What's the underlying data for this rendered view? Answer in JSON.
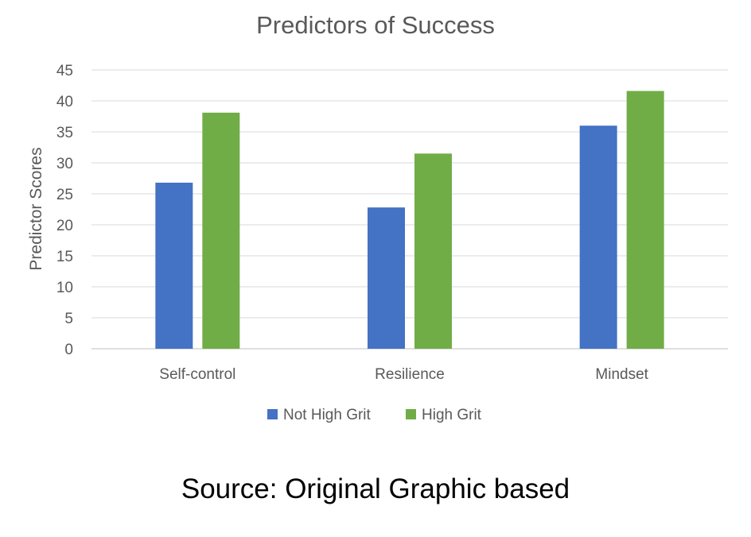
{
  "chart_data": {
    "type": "bar",
    "title": "Predictors of Success",
    "xlabel": "",
    "ylabel": "Predictor Scores",
    "categories": [
      "Self-control",
      "Resilience",
      "Mindset"
    ],
    "series": [
      {
        "name": "Not High Grit",
        "color": "#4472C4",
        "values": [
          26.8,
          22.8,
          36.0
        ]
      },
      {
        "name": "High Grit",
        "color": "#70AD47",
        "values": [
          38.1,
          31.5,
          41.6
        ]
      }
    ],
    "ylim": [
      0,
      45
    ],
    "yticks": [
      0,
      5,
      10,
      15,
      20,
      25,
      30,
      35,
      40,
      45
    ],
    "grid": true,
    "legend_position": "bottom"
  },
  "caption": "Source: Original Graphic based"
}
